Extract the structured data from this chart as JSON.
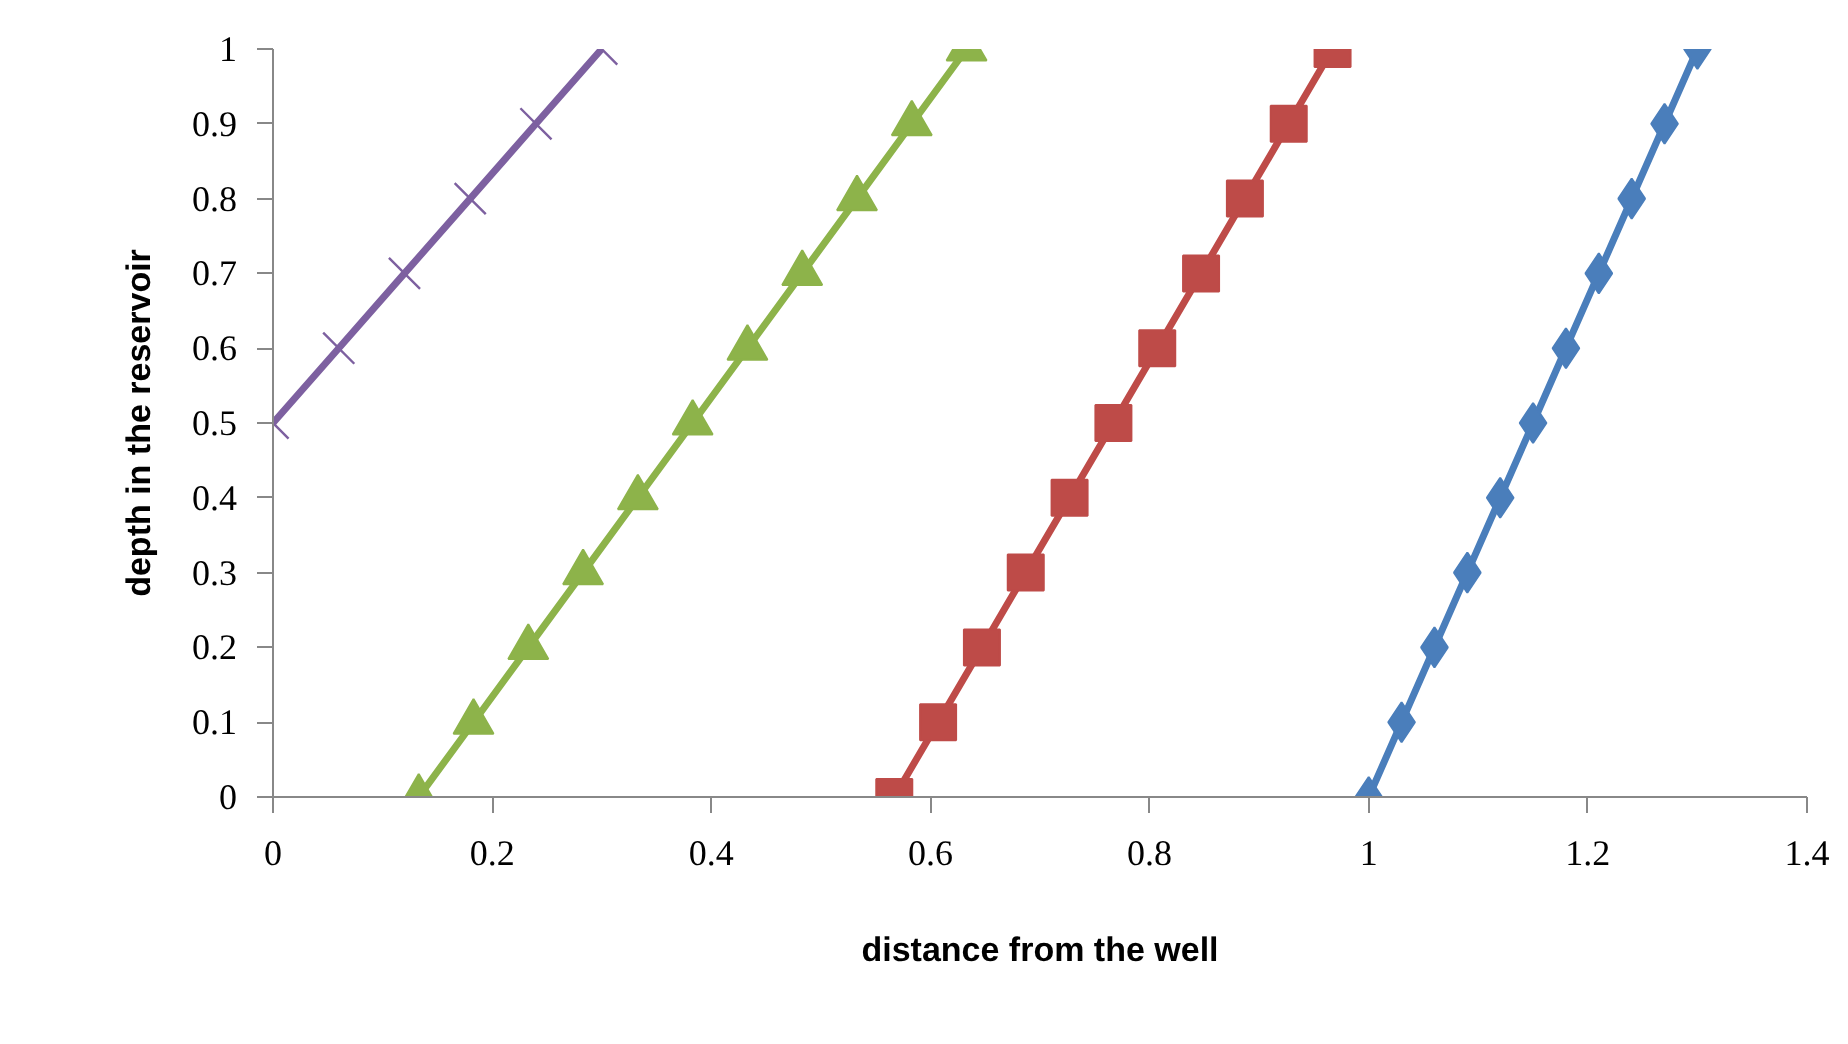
{
  "chart_data": {
    "type": "line",
    "xlabel": "distance from the well",
    "ylabel": "depth in the reservoir",
    "xlim": [
      0,
      1.4
    ],
    "ylim": [
      0,
      1
    ],
    "xticks": [
      0,
      0.2,
      0.4,
      0.6,
      0.8,
      1,
      1.2,
      1.4
    ],
    "yticks": [
      0,
      0.1,
      0.2,
      0.3,
      0.4,
      0.5,
      0.6,
      0.7,
      0.8,
      0.9,
      1
    ],
    "grid": false,
    "series": [
      {
        "color": "#7d60a0",
        "marker": "cross",
        "x": [
          0,
          0.06,
          0.12,
          0.18,
          0.24,
          0.3
        ],
        "values": [
          0.5,
          0.6,
          0.7,
          0.8,
          0.9,
          1
        ]
      },
      {
        "color": "#8db34a",
        "marker": "triangle",
        "x": [
          0.133,
          0.183,
          0.233,
          0.283,
          0.333,
          0.383,
          0.433,
          0.483,
          0.533,
          0.583,
          0.633
        ],
        "values": [
          0,
          0.1,
          0.2,
          0.3,
          0.4,
          0.5,
          0.6,
          0.7,
          0.8,
          0.9,
          1
        ]
      },
      {
        "color": "#be4b48",
        "marker": "square",
        "x": [
          0.567,
          0.607,
          0.647,
          0.687,
          0.727,
          0.767,
          0.807,
          0.847,
          0.887,
          0.927,
          0.967
        ],
        "values": [
          0,
          0.1,
          0.2,
          0.3,
          0.4,
          0.5,
          0.6,
          0.7,
          0.8,
          0.9,
          1
        ]
      },
      {
        "color": "#4a7ebb",
        "marker": "diamond",
        "x": [
          1,
          1.03,
          1.06,
          1.09,
          1.12,
          1.15,
          1.18,
          1.21,
          1.24,
          1.27,
          1.3
        ],
        "values": [
          0,
          0.1,
          0.2,
          0.3,
          0.4,
          0.5,
          0.6,
          0.7,
          0.8,
          0.9,
          1
        ]
      }
    ]
  }
}
